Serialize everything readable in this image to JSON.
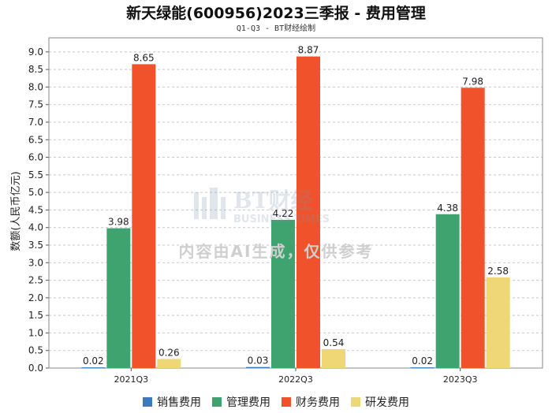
{
  "header": {
    "title": "新天绿能(600956)2023三季报 - 费用管理",
    "subtitle": "Q1-Q3 - BT财经绘制"
  },
  "watermark": {
    "logo_text": "BT财经",
    "logo_subtext": "BUSINESS TIMES",
    "notice": "内容由AI生成，仅供参考"
  },
  "chart_data": {
    "type": "bar",
    "title": "新天绿能(600956)2023三季报 - 费用管理",
    "subtitle": "Q1-Q3 - BT财经绘制",
    "xlabel": "",
    "ylabel": "数额(人民币亿元)",
    "ylim": [
      0,
      9.4
    ],
    "yticks": [
      0.0,
      0.5,
      1.0,
      1.5,
      2.0,
      2.5,
      3.0,
      3.5,
      4.0,
      4.5,
      5.0,
      5.5,
      6.0,
      6.5,
      7.0,
      7.5,
      8.0,
      8.5,
      9.0
    ],
    "grid": true,
    "legend_position": "bottom-center",
    "categories": [
      "2021Q3",
      "2022Q3",
      "2023Q3"
    ],
    "series": [
      {
        "name": "销售费用",
        "color": "#3a7bbf",
        "values": [
          0.02,
          0.03,
          0.02
        ],
        "labels": [
          "0.02",
          "0.03",
          "0.02"
        ]
      },
      {
        "name": "管理费用",
        "color": "#3fa36f",
        "values": [
          3.98,
          4.22,
          4.38
        ],
        "labels": [
          "3.98",
          "4.22",
          "4.38"
        ]
      },
      {
        "name": "财务费用",
        "color": "#f0532b",
        "values": [
          8.65,
          8.87,
          7.98
        ],
        "labels": [
          "8.65",
          "8.87",
          "7.98"
        ]
      },
      {
        "name": "研发费用",
        "color": "#f0d776",
        "values": [
          0.26,
          0.54,
          2.58
        ],
        "labels": [
          "0.26",
          "0.54",
          "2.58"
        ]
      }
    ]
  }
}
